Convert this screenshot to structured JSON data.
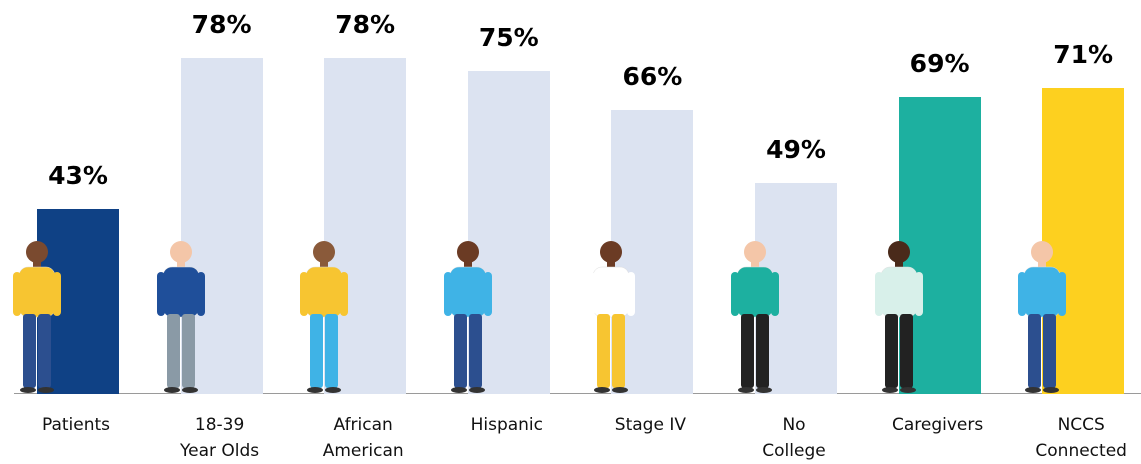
{
  "chart_data": {
    "type": "bar",
    "categories": [
      "Patients",
      "18-39\nYear Olds",
      "African\nAmerican",
      "Hispanic",
      "Stage IV",
      "No\nCollege",
      "Caregivers",
      "NCCS\nConnected"
    ],
    "values": [
      43,
      78,
      78,
      75,
      66,
      49,
      69,
      71
    ],
    "value_labels": [
      "43%",
      "78%",
      "78%",
      "75%",
      "66%",
      "49%",
      "69%",
      "71%"
    ],
    "colors": [
      "#0f4185",
      "#dce3f1",
      "#dce3f1",
      "#dce3f1",
      "#dce3f1",
      "#dce3f1",
      "#1db0a0",
      "#fdd01f"
    ],
    "ylim": [
      0,
      100
    ]
  }
}
